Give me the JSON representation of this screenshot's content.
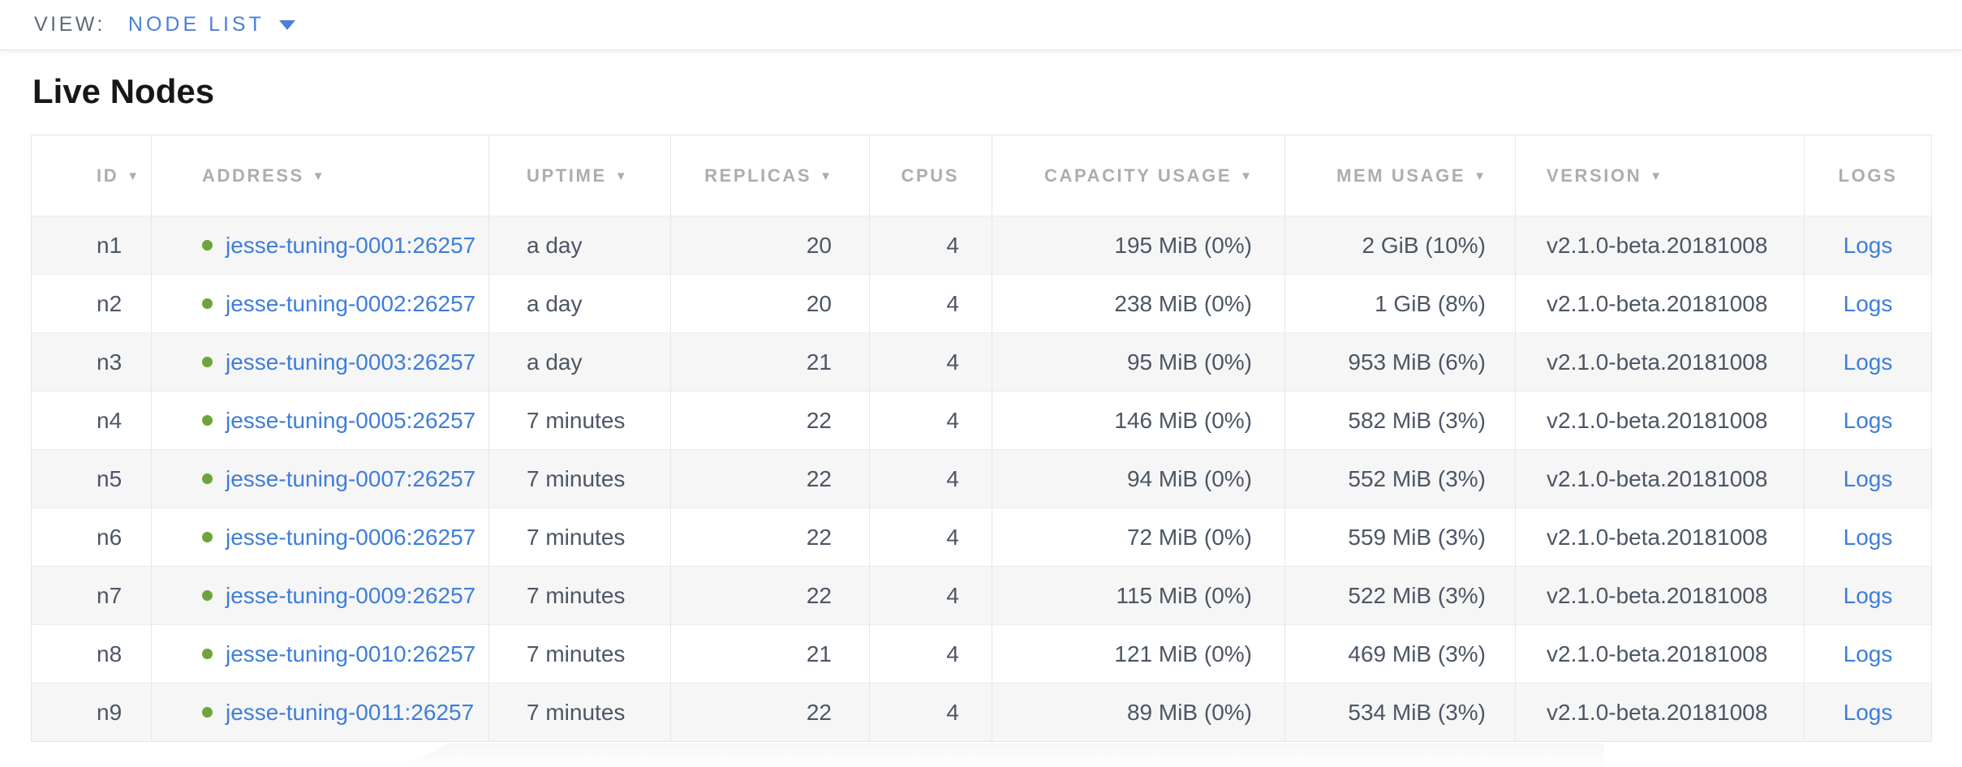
{
  "view_bar": {
    "label": "VIEW:",
    "selected": "NODE LIST"
  },
  "page": {
    "title": "Live Nodes"
  },
  "colors": {
    "accent_blue": "#3e7ed9",
    "status_green": "#6fa43b",
    "header_gray": "#a9aeb3",
    "row_stripe": "#f6f6f6"
  },
  "table": {
    "columns": [
      {
        "key": "id",
        "label": "ID",
        "sortable": true,
        "align": "al",
        "cls": "c-id"
      },
      {
        "key": "address",
        "label": "ADDRESS",
        "sortable": true,
        "align": "al",
        "cls": "c-address"
      },
      {
        "key": "uptime",
        "label": "UPTIME",
        "sortable": true,
        "align": "al",
        "cls": "c-uptime"
      },
      {
        "key": "replicas",
        "label": "REPLICAS",
        "sortable": true,
        "align": "ar",
        "cls": "c-replicas"
      },
      {
        "key": "cpus",
        "label": "CPUS",
        "sortable": false,
        "align": "ar",
        "cls": "c-cpus"
      },
      {
        "key": "capacity",
        "label": "CAPACITY USAGE",
        "sortable": true,
        "align": "ar",
        "cls": "c-capacity"
      },
      {
        "key": "mem",
        "label": "MEM USAGE",
        "sortable": true,
        "align": "ar",
        "cls": "c-mem"
      },
      {
        "key": "version",
        "label": "VERSION",
        "sortable": true,
        "align": "al",
        "cls": "c-version"
      },
      {
        "key": "logs",
        "label": "LOGS",
        "sortable": false,
        "align": "ac",
        "cls": "c-logs"
      }
    ],
    "logs_label": "Logs",
    "rows": [
      {
        "id": "n1",
        "address": "jesse-tuning-0001:26257",
        "uptime": "a day",
        "replicas": "20",
        "cpus": "4",
        "capacity": "195 MiB (0%)",
        "mem": "2 GiB (10%)",
        "version": "v2.1.0-beta.20181008"
      },
      {
        "id": "n2",
        "address": "jesse-tuning-0002:26257",
        "uptime": "a day",
        "replicas": "20",
        "cpus": "4",
        "capacity": "238 MiB (0%)",
        "mem": "1 GiB (8%)",
        "version": "v2.1.0-beta.20181008"
      },
      {
        "id": "n3",
        "address": "jesse-tuning-0003:26257",
        "uptime": "a day",
        "replicas": "21",
        "cpus": "4",
        "capacity": "95 MiB (0%)",
        "mem": "953 MiB (6%)",
        "version": "v2.1.0-beta.20181008"
      },
      {
        "id": "n4",
        "address": "jesse-tuning-0005:26257",
        "uptime": "7 minutes",
        "replicas": "22",
        "cpus": "4",
        "capacity": "146 MiB (0%)",
        "mem": "582 MiB (3%)",
        "version": "v2.1.0-beta.20181008"
      },
      {
        "id": "n5",
        "address": "jesse-tuning-0007:26257",
        "uptime": "7 minutes",
        "replicas": "22",
        "cpus": "4",
        "capacity": "94 MiB (0%)",
        "mem": "552 MiB (3%)",
        "version": "v2.1.0-beta.20181008"
      },
      {
        "id": "n6",
        "address": "jesse-tuning-0006:26257",
        "uptime": "7 minutes",
        "replicas": "22",
        "cpus": "4",
        "capacity": "72 MiB (0%)",
        "mem": "559 MiB (3%)",
        "version": "v2.1.0-beta.20181008"
      },
      {
        "id": "n7",
        "address": "jesse-tuning-0009:26257",
        "uptime": "7 minutes",
        "replicas": "22",
        "cpus": "4",
        "capacity": "115 MiB (0%)",
        "mem": "522 MiB (3%)",
        "version": "v2.1.0-beta.20181008"
      },
      {
        "id": "n8",
        "address": "jesse-tuning-0010:26257",
        "uptime": "7 minutes",
        "replicas": "21",
        "cpus": "4",
        "capacity": "121 MiB (0%)",
        "mem": "469 MiB (3%)",
        "version": "v2.1.0-beta.20181008"
      },
      {
        "id": "n9",
        "address": "jesse-tuning-0011:26257",
        "uptime": "7 minutes",
        "replicas": "22",
        "cpus": "4",
        "capacity": "89 MiB (0%)",
        "mem": "534 MiB (3%)",
        "version": "v2.1.0-beta.20181008"
      }
    ]
  }
}
